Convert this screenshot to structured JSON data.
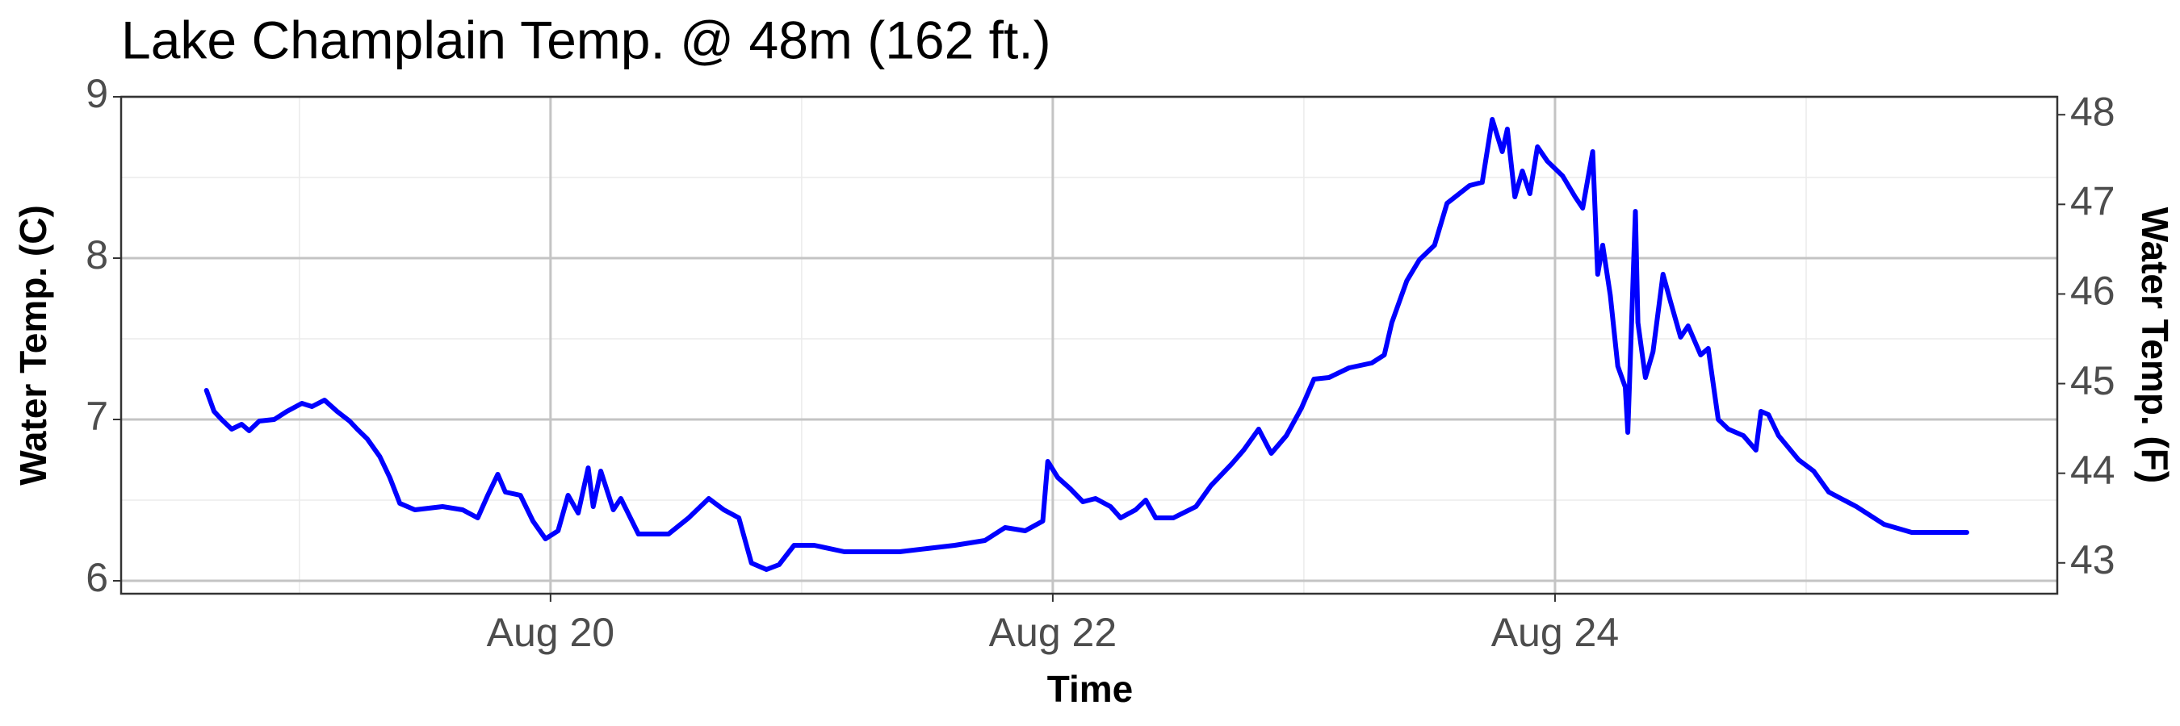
{
  "chart_data": {
    "type": "line",
    "title": "Lake Champlain Temp. @ 48m (162 ft.)",
    "xlabel": "Time",
    "ylabel": "Water Temp. (C)",
    "y2label": "Water Temp. (F)",
    "color": "#0000ff",
    "grid": true,
    "x": [
      18.63,
      18.66,
      18.69,
      18.73,
      18.77,
      18.8,
      18.84,
      18.9,
      18.95,
      19.01,
      19.05,
      19.1,
      19.15,
      19.2,
      19.23,
      19.27,
      19.32,
      19.36,
      19.4,
      19.46,
      19.57,
      19.65,
      19.71,
      19.75,
      19.79,
      19.82,
      19.88,
      19.93,
      19.98,
      20.03,
      20.07,
      20.11,
      20.15,
      20.17,
      20.2,
      20.25,
      20.28,
      20.35,
      20.47,
      20.55,
      20.63,
      20.69,
      20.75,
      20.8,
      20.86,
      20.91,
      20.97,
      21.05,
      21.17,
      21.28,
      21.39,
      21.5,
      21.61,
      21.73,
      21.81,
      21.89,
      21.96,
      21.98,
      22.02,
      22.07,
      22.12,
      22.17,
      22.23,
      22.27,
      22.33,
      22.37,
      22.41,
      22.48,
      22.57,
      22.63,
      22.71,
      22.76,
      22.82,
      22.87,
      22.93,
      22.99,
      23.04,
      23.1,
      23.18,
      23.27,
      23.32,
      23.35,
      23.41,
      23.46,
      23.52,
      23.57,
      23.66,
      23.71,
      23.75,
      23.79,
      23.81,
      23.84,
      23.87,
      23.9,
      23.93,
      23.97,
      24.03,
      24.08,
      24.11,
      24.15,
      24.17,
      24.19,
      24.22,
      24.25,
      24.28,
      24.29,
      24.32,
      24.33,
      24.36,
      24.39,
      24.43,
      24.46,
      24.5,
      24.53,
      24.58,
      24.61,
      24.65,
      24.69,
      24.75,
      24.8,
      24.82,
      24.85,
      24.89,
      24.97,
      25.03,
      25.09,
      25.2,
      25.31,
      25.42,
      25.64
    ],
    "values": [
      7.18,
      7.05,
      7.0,
      6.94,
      6.97,
      6.93,
      6.99,
      7.0,
      7.05,
      7.1,
      7.08,
      7.12,
      7.05,
      6.99,
      6.94,
      6.88,
      6.77,
      6.64,
      6.48,
      6.44,
      6.46,
      6.44,
      6.39,
      6.53,
      6.66,
      6.55,
      6.53,
      6.37,
      6.26,
      6.31,
      6.53,
      6.42,
      6.7,
      6.46,
      6.68,
      6.44,
      6.51,
      6.29,
      6.29,
      6.39,
      6.51,
      6.44,
      6.39,
      6.11,
      6.07,
      6.1,
      6.22,
      6.22,
      6.18,
      6.18,
      6.18,
      6.2,
      6.22,
      6.25,
      6.33,
      6.31,
      6.37,
      6.74,
      6.64,
      6.57,
      6.49,
      6.51,
      6.46,
      6.39,
      6.44,
      6.5,
      6.39,
      6.39,
      6.46,
      6.59,
      6.72,
      6.81,
      6.94,
      6.79,
      6.9,
      7.07,
      7.25,
      7.26,
      7.32,
      7.35,
      7.4,
      7.6,
      7.86,
      7.99,
      8.08,
      8.34,
      8.45,
      8.47,
      8.86,
      8.66,
      8.8,
      8.38,
      8.54,
      8.4,
      8.69,
      8.6,
      8.51,
      8.38,
      8.31,
      8.66,
      7.9,
      8.08,
      7.77,
      7.33,
      7.2,
      6.92,
      8.29,
      7.6,
      7.26,
      7.42,
      7.9,
      7.73,
      7.51,
      7.58,
      7.4,
      7.44,
      7.0,
      6.94,
      6.9,
      6.81,
      7.05,
      7.03,
      6.9,
      6.75,
      6.68,
      6.55,
      6.46,
      6.35,
      6.3,
      6.3
    ],
    "xlim": [
      18.29,
      26.0
    ],
    "xticks": [
      {
        "value": 20,
        "label": "Aug 20"
      },
      {
        "value": 22,
        "label": "Aug 22"
      },
      {
        "value": 24,
        "label": "Aug 24"
      }
    ],
    "ylim": [
      5.92,
      9.0
    ],
    "yticks": [
      6,
      7,
      8,
      9
    ],
    "y2lim": [
      42.656,
      48.2
    ],
    "y2ticks": [
      43,
      44,
      45,
      46,
      47,
      48
    ]
  }
}
